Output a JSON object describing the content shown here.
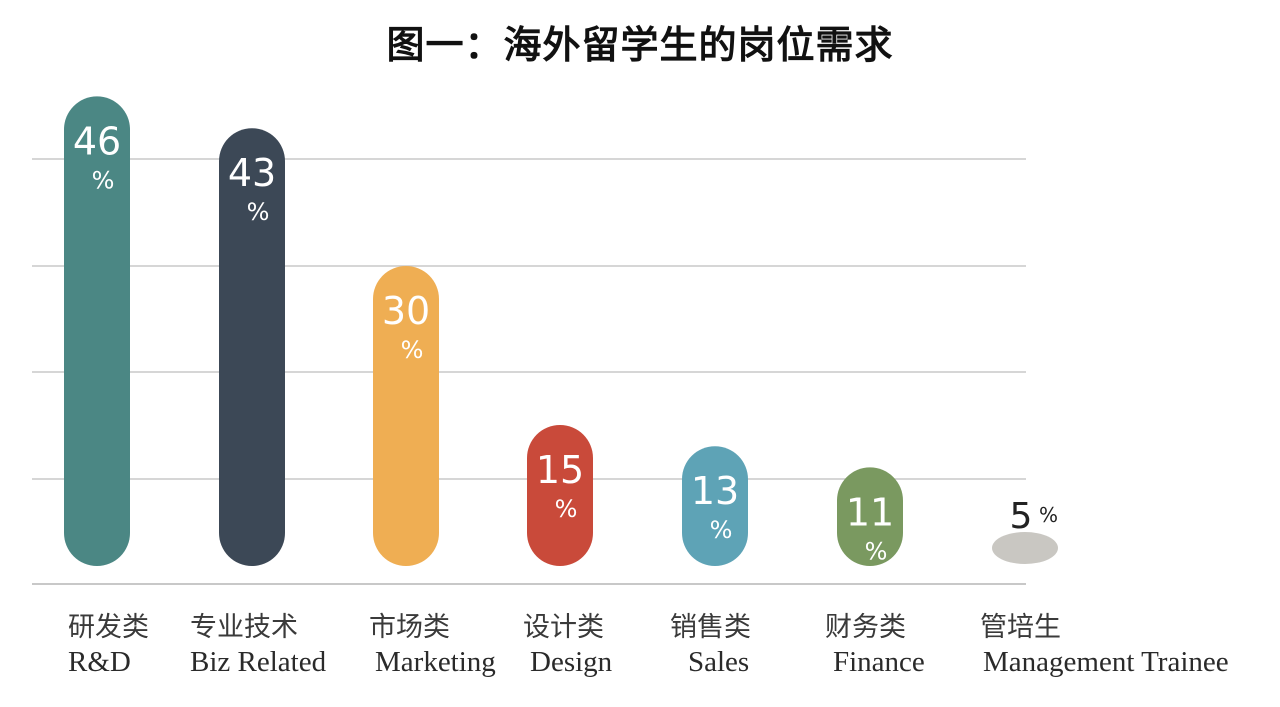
{
  "chart_data": {
    "type": "bar",
    "title": "图一：海外留学生的岗位需求",
    "categories": [
      {
        "cn": "研发类",
        "en": "R&D"
      },
      {
        "cn": "专业技术",
        "en": "Biz Related"
      },
      {
        "cn": "市场类",
        "en": "Marketing"
      },
      {
        "cn": "设计类",
        "en": "Design"
      },
      {
        "cn": "销售类",
        "en": "Sales"
      },
      {
        "cn": "财务类",
        "en": "Finance"
      },
      {
        "cn": "管培生",
        "en": "Management Trainee"
      }
    ],
    "values": [
      46,
      43,
      30,
      15,
      13,
      11,
      5
    ],
    "value_labels": [
      {
        "num": "46",
        "pct": "%"
      },
      {
        "num": "43",
        "pct": "%"
      },
      {
        "num": "30",
        "pct": "%"
      },
      {
        "num": "15",
        "pct": "%"
      },
      {
        "num": "13",
        "pct": "%"
      },
      {
        "num": "11",
        "pct": "%"
      },
      {
        "num": "5",
        "pct": "%"
      }
    ],
    "colors": [
      "#4b8784",
      "#3c4856",
      "#efae53",
      "#c94a3a",
      "#5ea3b6",
      "#7a9960",
      "#c9c7c2"
    ],
    "label_color_last": "#222222",
    "grid": true,
    "grid_color": "#c8c8c8",
    "ylim": [
      0,
      50
    ]
  }
}
